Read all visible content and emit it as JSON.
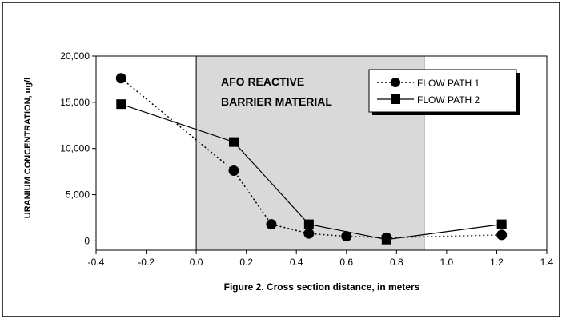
{
  "chart_data": {
    "type": "line",
    "title": "",
    "caption": "Figure 2.  Cross section distance, in meters",
    "xlabel": "Figure 2.  Cross section distance, in meters",
    "ylabel": "URANIUM CONCENTRATION, ug/l",
    "xlim": [
      -0.4,
      1.4
    ],
    "ylim": [
      -1000,
      20000
    ],
    "x_ticks": [
      -0.4,
      -0.2,
      0.0,
      0.2,
      0.4,
      0.6,
      0.8,
      1.0,
      1.2,
      1.4
    ],
    "x_tick_labels": [
      "-0.4",
      "-0.2",
      "0.0",
      "0.2",
      "0.4",
      "0.6",
      "0.8",
      "1.0",
      "1.2",
      "1.4"
    ],
    "y_ticks": [
      0,
      5000,
      10000,
      15000,
      20000
    ],
    "y_tick_labels": [
      "0",
      "5,000",
      "10,000",
      "15,000",
      "20,000"
    ],
    "grid": false,
    "legend_placement": "top-right",
    "shaded_region": {
      "x_start": 0.0,
      "x_end": 0.91,
      "label_line1": "AFO REACTIVE",
      "label_line2": "BARRIER MATERIAL",
      "color": "#d9d9d9"
    },
    "series": [
      {
        "name": "FLOW PATH 1",
        "marker": "circle",
        "line_style": "dotted",
        "x": [
          -0.3,
          0.15,
          0.3,
          0.45,
          0.6,
          0.76,
          1.22
        ],
        "y": [
          17600,
          7600,
          1800,
          800,
          500,
          350,
          650
        ]
      },
      {
        "name": "FLOW PATH 2",
        "marker": "square",
        "line_style": "solid",
        "x": [
          -0.3,
          0.15,
          0.45,
          0.76,
          1.22
        ],
        "y": [
          14800,
          10700,
          1800,
          150,
          1800
        ]
      }
    ]
  }
}
